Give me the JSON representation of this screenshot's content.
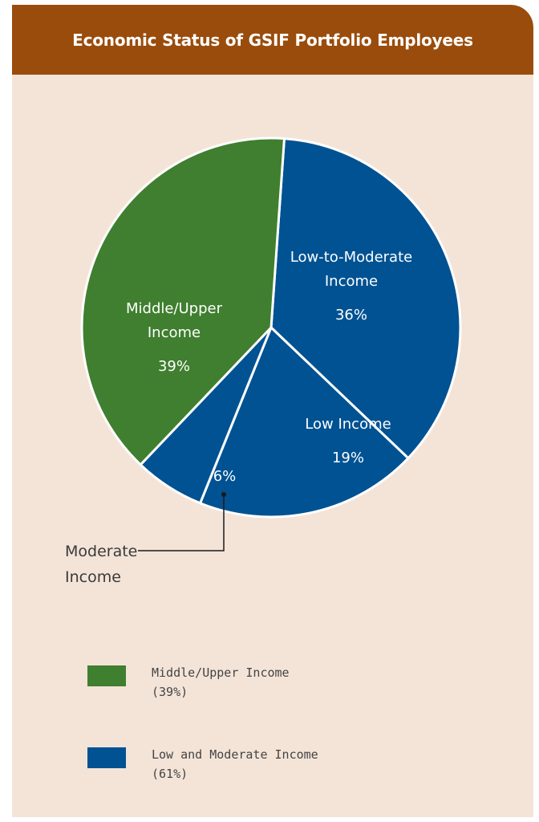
{
  "header": {
    "title": "Economic Status of GSIF Portfolio Employees"
  },
  "chart_data": {
    "type": "pie",
    "title": "Economic Status of GSIF Portfolio Employees",
    "slices": [
      {
        "label_lines": [
          "Low-to-Moderate",
          "Income"
        ],
        "value": 36,
        "value_label": "36%",
        "color": "#005293"
      },
      {
        "label_lines": [
          "Low Income"
        ],
        "value": 19,
        "value_label": "19%",
        "color": "#005293"
      },
      {
        "label_lines": [],
        "value": 6,
        "value_label": "6%",
        "color": "#005293",
        "callout_lines": [
          "Moderate",
          "Income"
        ]
      },
      {
        "label_lines": [
          "Middle/Upper",
          "Income"
        ],
        "value": 39,
        "value_label": "39%",
        "color": "#3f7f2f"
      }
    ]
  },
  "legend": [
    {
      "line1": "Middle/Upper Income",
      "line2": "(39%)",
      "color": "#3f7f2f"
    },
    {
      "line1": "Low and Moderate Income",
      "line2": "(61%)",
      "color": "#005293"
    }
  ]
}
